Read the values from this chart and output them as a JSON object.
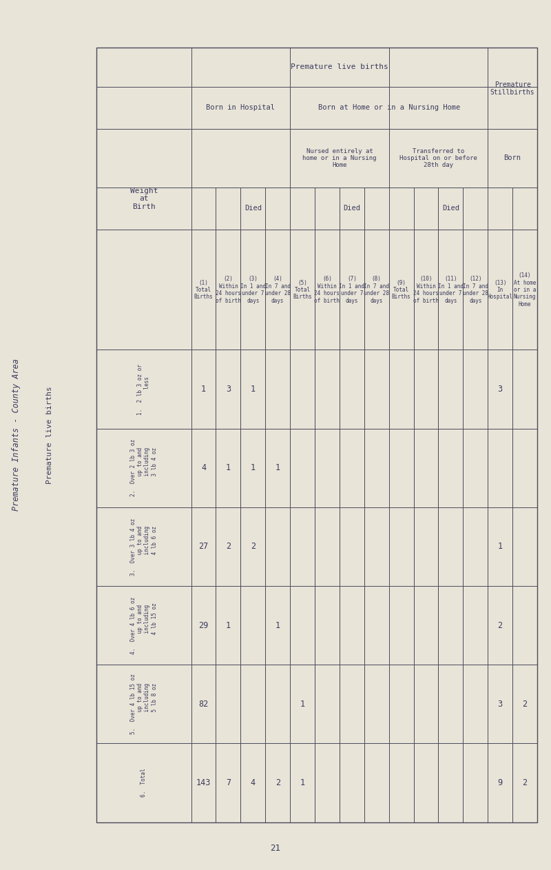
{
  "bg_color": "#e8e4d8",
  "line_color": "#4a4a5a",
  "text_color": "#3a3a5c",
  "page_num": "21",
  "title_main": "Premature Infants - County Area",
  "title_sub": "Premature live births",
  "weight_categories": [
    "1.  2 lb 3 oz or\n    less",
    "2.  Over 2 lb 3 oz\n    up to and\n    including\n    3 lb 4 oz",
    "3.  Over 3 lb 4 oz\n    up to and\n    including\n    4 lb 6 oz",
    "4.  Over 4 lb 6 oz\n    up to and\n    including\n    4 lb 15 oz",
    "5.  Over 4 lb 15 oz\n    up to and\n    including\n    5 lb 8 oz",
    "6.  Total"
  ],
  "col_headers_rotated": [
    "(1)\nTotal\nBirths",
    "(2)\nWithin\n24 hours\nof birth",
    "(3)\nIn 1 and\nunder 7\ndays",
    "(4)\nIn 7 and\nunder 28\ndays",
    "(5)\nTotal\nBirths",
    "(6)\nWithin\n24 hours\nof birth",
    "(7)\nIn 1 and\nunder 7\ndays",
    "(8)\nIn 7 and\nunder 28\ndays",
    "(9)\nTotal\nBirths",
    "(10)\nWithin\n24 hours\nof birth",
    "(11)\nIn 1 and\nunder 7\ndays",
    "(12)\nIn 7 and\nunder 28\ndays",
    "(13)\nIn\nHospital",
    "(14)\nAt home\nor in a\nNursing\nHome"
  ],
  "data": [
    [
      1,
      3,
      1,
      null,
      null,
      null,
      null,
      null,
      null,
      null,
      null,
      null,
      3,
      null
    ],
    [
      4,
      1,
      1,
      1,
      null,
      null,
      null,
      null,
      null,
      null,
      null,
      null,
      null,
      null
    ],
    [
      27,
      2,
      2,
      null,
      null,
      null,
      null,
      null,
      null,
      null,
      null,
      null,
      1,
      null
    ],
    [
      29,
      1,
      null,
      1,
      null,
      null,
      null,
      null,
      null,
      null,
      null,
      null,
      2,
      null
    ],
    [
      82,
      null,
      null,
      null,
      1,
      null,
      null,
      null,
      null,
      null,
      null,
      null,
      3,
      2
    ],
    [
      143,
      7,
      4,
      2,
      1,
      null,
      null,
      null,
      null,
      null,
      null,
      null,
      9,
      2
    ]
  ],
  "group_labels": {
    "born_hosp": "Born in Hospital",
    "born_home": "Born at Home or in a Nursing Home",
    "nursed_home": "Nursed entirely at\nhome or in a Nursing\nHome",
    "transferred": "Transferred to\nHospital on or before\n28th day",
    "premature_still": "Premature\nStillbirths",
    "died": "Died",
    "born": "Born",
    "weight": "Weight\nat\nBirth"
  }
}
